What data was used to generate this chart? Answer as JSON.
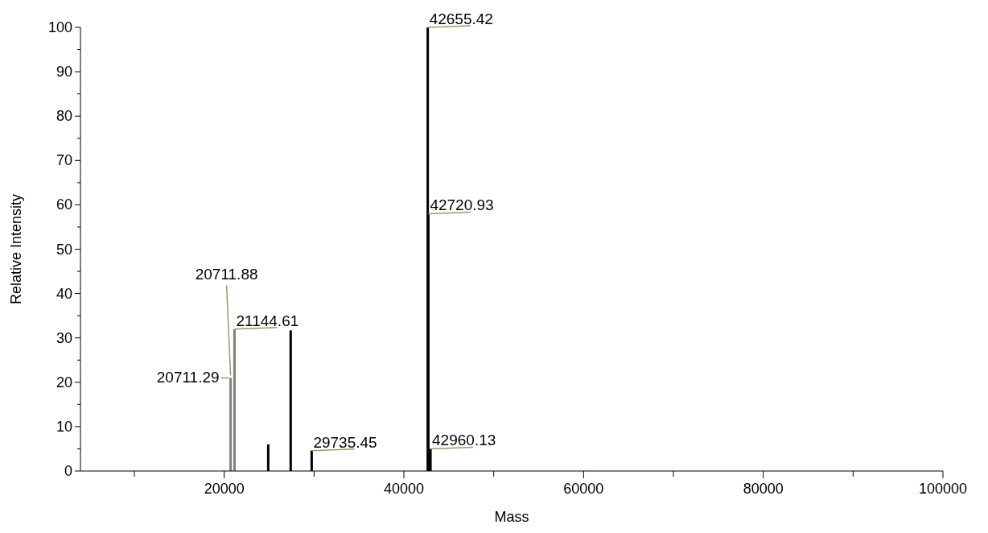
{
  "chart_data": {
    "type": "bar",
    "xlabel": "Mass",
    "ylabel": "Relative Intensity",
    "x": [
      20711.29,
      21144.61,
      24900,
      27400,
      29735.45,
      42655.42,
      42720.93,
      42960.13
    ],
    "values": [
      21,
      32,
      6,
      31.7,
      4.6,
      100,
      58,
      5
    ],
    "colors": [
      "#808080",
      "#808080",
      "#000000",
      "#000000",
      "#000000",
      "#000000",
      "#000000",
      "#000000"
    ],
    "xlim": [
      4000,
      100000
    ],
    "xticks": [
      {
        "value": 10000,
        "label": null
      },
      20000,
      {
        "value": 30000,
        "label": null
      },
      40000,
      {
        "value": 50000,
        "label": null
      },
      60000,
      {
        "value": 70000,
        "label": null
      },
      80000,
      {
        "value": 90000,
        "label": null
      },
      100000
    ],
    "ylim": [
      0,
      100
    ],
    "yticks": [
      0,
      {
        "value": 5,
        "label": null
      },
      10,
      {
        "value": 15,
        "label": null
      },
      20,
      {
        "value": 25,
        "label": null
      },
      30,
      {
        "value": 35,
        "label": null
      },
      40,
      {
        "value": 45,
        "label": null
      },
      50,
      {
        "value": 55,
        "label": null
      },
      60,
      {
        "value": 65,
        "label": null
      },
      70,
      {
        "value": 75,
        "label": null
      },
      80,
      {
        "value": 85,
        "label": null
      },
      90,
      {
        "value": 95,
        "label": null
      },
      100
    ],
    "annotations": [
      {
        "text": "42655.42",
        "x": 42655.42,
        "y": 100
      },
      {
        "text": "42720.93",
        "x": 42720.93,
        "y": 58
      },
      {
        "text": "20711.88",
        "x": 20711.88,
        "y": 21.5
      },
      {
        "text": "21144.61",
        "x": 21144.61,
        "y": 32
      },
      {
        "text": "20711.29",
        "x": 20711.29,
        "y": 21
      },
      {
        "text": "29735.45",
        "x": 29735.45,
        "y": 4.6
      },
      {
        "text": "42960.13",
        "x": 42960.13,
        "y": 5
      }
    ],
    "grid": false
  }
}
